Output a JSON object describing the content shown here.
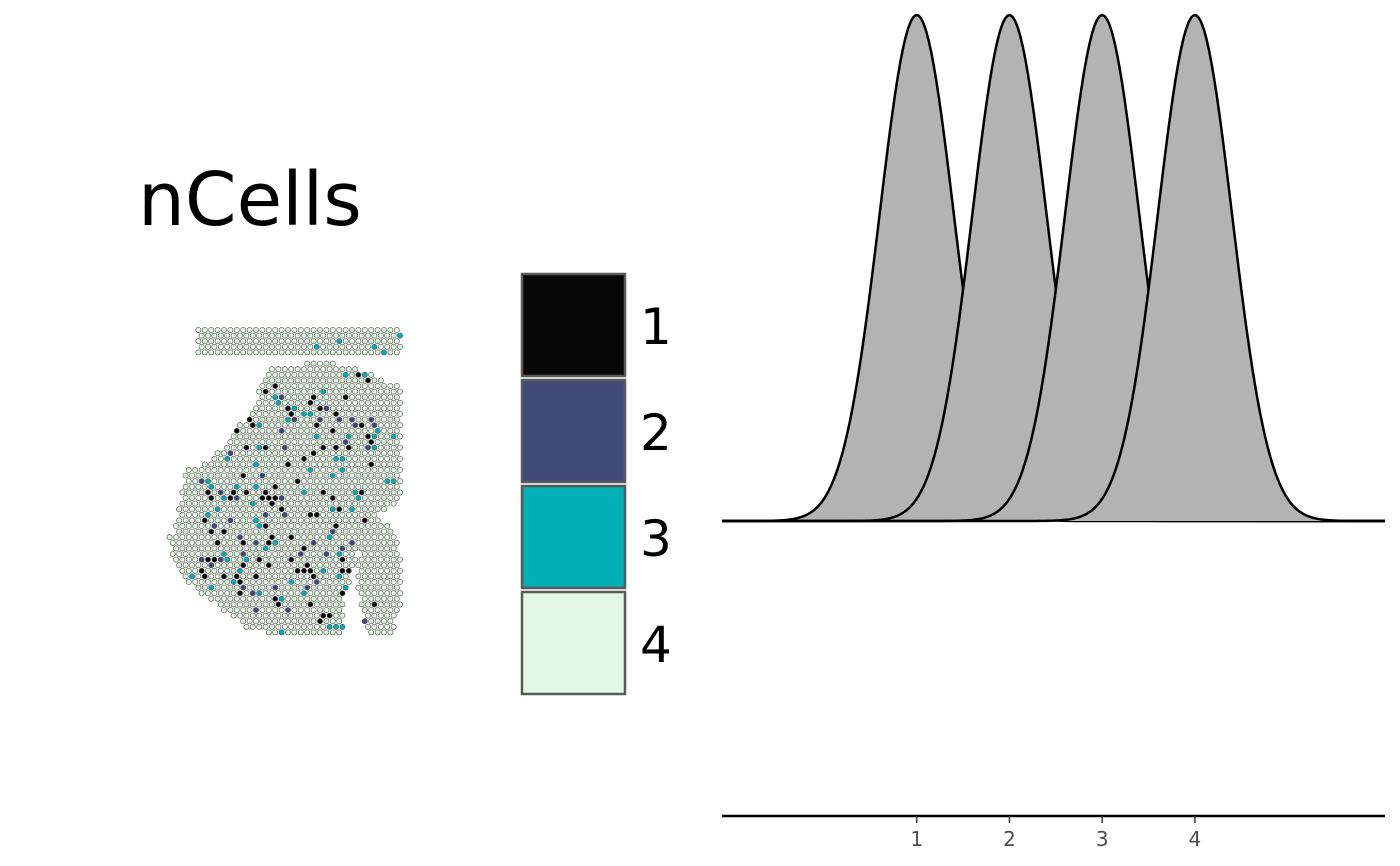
{
  "chart_data": [
    {
      "type": "scatter",
      "title": "nCells",
      "legend": {
        "placement": "right",
        "entries": [
          {
            "label": "1",
            "color": "#080808"
          },
          {
            "label": "2",
            "color": "#404a7a"
          },
          {
            "label": "3",
            "color": "#00b0b4"
          },
          {
            "label": "4",
            "color": "#e2f8e2"
          }
        ]
      }
    },
    {
      "type": "area",
      "x_ticks": [
        1,
        2,
        3,
        4
      ],
      "xlim": [
        -1.1,
        6.05
      ],
      "ylim": [
        0,
        1
      ],
      "fill_color": "#b3b3b3",
      "grid": false,
      "series": [
        {
          "mean": 1,
          "sd": 0.4
        },
        {
          "mean": 2,
          "sd": 0.4
        },
        {
          "mean": 3,
          "sd": 0.4
        },
        {
          "mean": 4,
          "sd": 0.4
        }
      ]
    }
  ]
}
